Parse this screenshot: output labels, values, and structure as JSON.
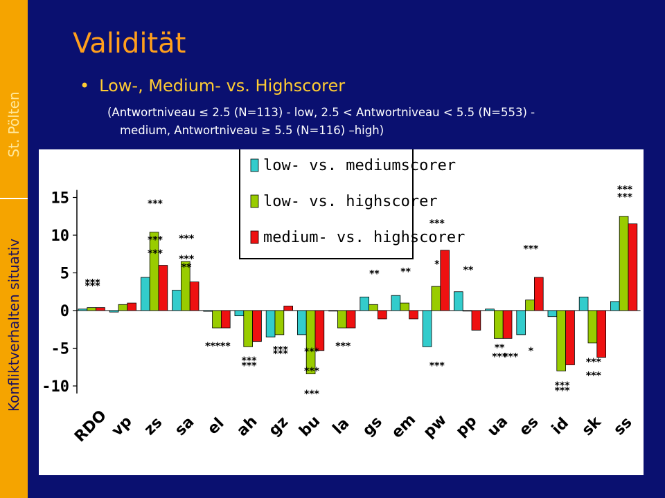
{
  "sidebar": {
    "top_text": "St. Pölten",
    "bottom_text": "Konfliktverhalten situativ"
  },
  "slide": {
    "title": "Validität",
    "bullet": "Low-, Medium- vs. Highscorer",
    "detail_line1": "(Antwortniveau ≤ 2.5 (N=113) - low, 2.5 < Antwortniveau  < 5.5  (N=553) -",
    "detail_line2": "medium, Antwortniveau ≥ 5.5 (N=116) –high)"
  },
  "chart_data": {
    "type": "bar",
    "categories": [
      "RDO",
      "vp",
      "zs",
      "sa",
      "el",
      "ah",
      "gz",
      "bu",
      "la",
      "gs",
      "em",
      "pw",
      "pp",
      "ua",
      "es",
      "id",
      "sk",
      "ss"
    ],
    "series": [
      {
        "name": "low- vs. mediumscorer",
        "color": "#33cccc",
        "values": [
          0.2,
          -0.2,
          4.4,
          2.7,
          -0.1,
          -0.7,
          -3.5,
          -3.2,
          0.0,
          1.8,
          2.0,
          -4.8,
          2.5,
          0.2,
          -3.2,
          -0.8,
          1.8,
          1.2
        ]
      },
      {
        "name": "low- vs. highscorer",
        "color": "#99cc00",
        "values": [
          0.4,
          0.8,
          10.4,
          6.5,
          -2.3,
          -4.8,
          -3.2,
          -8.4,
          -2.3,
          0.8,
          1.0,
          3.2,
          0.0,
          -3.7,
          1.4,
          -8.0,
          -4.3,
          12.5
        ]
      },
      {
        "name": "medium- vs. highscorer",
        "color": "#ee1111",
        "values": [
          0.4,
          1.0,
          6.0,
          3.8,
          -2.3,
          -4.1,
          0.6,
          -5.3,
          -2.3,
          -1.1,
          -1.1,
          8.0,
          -2.6,
          -3.7,
          4.4,
          -7.2,
          -6.2,
          11.5
        ]
      }
    ],
    "yticks": [
      15,
      10,
      5,
      0,
      -5,
      -10
    ],
    "ylim": [
      -11,
      16
    ],
    "legend_position": "top-center",
    "annotations": [
      {
        "text": "***",
        "x": "RDO",
        "y": 3.3
      },
      {
        "text": "***",
        "x": "RDO",
        "y": 3.7
      },
      {
        "text": "***",
        "x": "zs",
        "y": 14.2
      },
      {
        "text": "***",
        "x": "zs",
        "y": 7.6
      },
      {
        "text": "***",
        "x": "zs",
        "y": 9.4
      },
      {
        "text": "***",
        "x": "sa",
        "y": 9.6
      },
      {
        "text": "**",
        "x": "sa",
        "y": 5.8
      },
      {
        "text": "***",
        "x": "sa",
        "y": 6.9
      },
      {
        "text": "*****",
        "x": "el",
        "y": -4.7
      },
      {
        "text": "***",
        "x": "ah",
        "y": -7.3
      },
      {
        "text": "***",
        "x": "ah",
        "y": -6.6
      },
      {
        "text": "***",
        "x": "gz",
        "y": -5.7
      },
      {
        "text": "***",
        "x": "gz",
        "y": -5.2
      },
      {
        "text": "***",
        "x": "bu",
        "y": -5.4
      },
      {
        "text": "***",
        "x": "bu",
        "y": -8.0
      },
      {
        "text": "***",
        "x": "bu",
        "y": -11.0
      },
      {
        "text": "***",
        "x": "la",
        "y": -4.7
      },
      {
        "text": "**",
        "x": "gs",
        "y": 4.9
      },
      {
        "text": "**",
        "x": "em",
        "y": 5.2
      },
      {
        "text": "***",
        "x": "pw",
        "y": -7.3
      },
      {
        "text": "*",
        "x": "pw",
        "y": 6.2
      },
      {
        "text": "***",
        "x": "pw",
        "y": 11.6
      },
      {
        "text": "**",
        "x": "pp",
        "y": 5.4
      },
      {
        "text": "**",
        "x": "ua",
        "y": -4.9
      },
      {
        "text": "***",
        "x": "ua",
        "y": -6.1
      },
      {
        "text": "***",
        "x": "ua",
        "y": -6.1
      },
      {
        "text": "*",
        "x": "es",
        "y": -5.3
      },
      {
        "text": "***",
        "x": "es",
        "y": 8.2
      },
      {
        "text": "***",
        "x": "id",
        "y": -10.6
      },
      {
        "text": "***",
        "x": "id",
        "y": -9.9
      },
      {
        "text": "***",
        "x": "sk",
        "y": -6.8
      },
      {
        "text": "***",
        "x": "sk",
        "y": -8.6
      },
      {
        "text": "***",
        "x": "ss",
        "y": 16.1
      },
      {
        "text": "***",
        "x": "ss",
        "y": 15.1
      }
    ]
  }
}
